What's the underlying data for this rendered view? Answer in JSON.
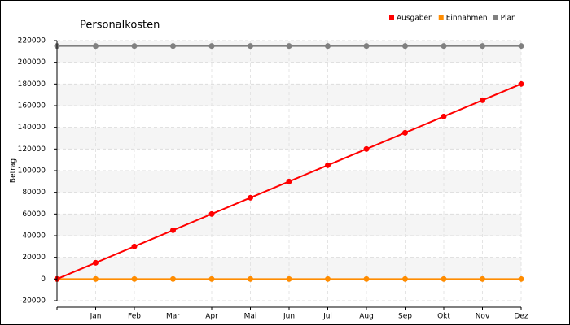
{
  "chart_data": {
    "type": "line",
    "title": "Personalkosten",
    "y_label": "Betrag",
    "categories": [
      null,
      "Jan",
      "Feb",
      "Mar",
      "Apr",
      "Mai",
      "Jun",
      "Jul",
      "Aug",
      "Sep",
      "Okt",
      "Nov",
      "Dez"
    ],
    "series": [
      {
        "name": "Ausgaben",
        "color": "#ff0000",
        "values": [
          0,
          15000,
          30000,
          45000,
          60000,
          75000,
          90000,
          105000,
          120000,
          135000,
          150000,
          165000,
          180000
        ]
      },
      {
        "name": "Einnahmen",
        "color": "#ff8c00",
        "values": [
          0,
          0,
          0,
          0,
          0,
          0,
          0,
          0,
          0,
          0,
          0,
          0,
          0
        ]
      },
      {
        "name": "Plan",
        "color": "#808080",
        "values": [
          215000,
          215000,
          215000,
          215000,
          215000,
          215000,
          215000,
          215000,
          215000,
          215000,
          215000,
          215000,
          215000
        ]
      }
    ],
    "ylim": [
      -20000,
      220000
    ],
    "yticks": [
      -20000,
      0,
      20000,
      40000,
      60000,
      80000,
      100000,
      120000,
      140000,
      160000,
      180000,
      200000,
      220000
    ],
    "grid": true,
    "legend": "top-right"
  }
}
